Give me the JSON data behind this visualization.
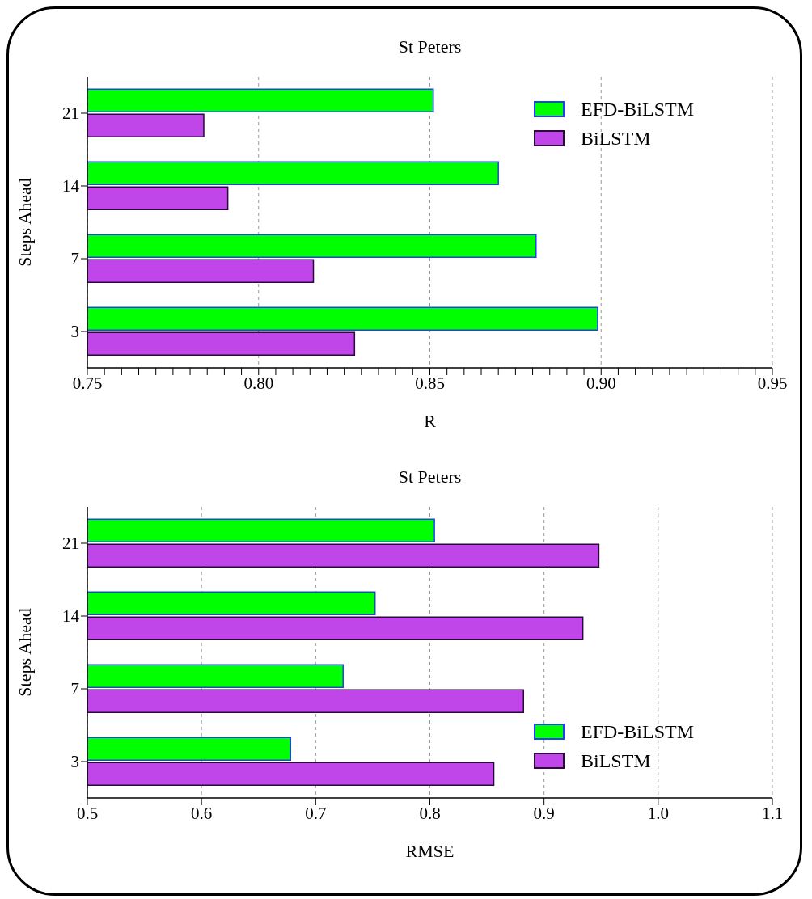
{
  "chart_data": [
    {
      "type": "bar",
      "orientation": "horizontal",
      "title": "St Peters",
      "xlabel": "R",
      "ylabel": "Steps Ahead",
      "categories": [
        "21",
        "14",
        "7",
        "3"
      ],
      "series": [
        {
          "name": "EFD-BiLSTM",
          "color": "#00ff00",
          "values": [
            0.851,
            0.87,
            0.881,
            0.899
          ]
        },
        {
          "name": "BiLSTM",
          "color": "#c046ea",
          "values": [
            0.784,
            0.791,
            0.816,
            0.828
          ]
        }
      ],
      "xlim": [
        0.75,
        0.95
      ],
      "xticks": [
        {
          "value": 0.75,
          "label": "0.75"
        },
        {
          "value": 0.755,
          "label": null
        },
        {
          "value": 0.76,
          "label": null
        },
        {
          "value": 0.765,
          "label": null
        },
        {
          "value": 0.77,
          "label": null
        },
        {
          "value": 0.775,
          "label": null
        },
        {
          "value": 0.78,
          "label": null
        },
        {
          "value": 0.785,
          "label": null
        },
        {
          "value": 0.79,
          "label": null
        },
        {
          "value": 0.795,
          "label": null
        },
        {
          "value": 0.8,
          "label": "0.80"
        },
        {
          "value": 0.805,
          "label": null
        },
        {
          "value": 0.81,
          "label": null
        },
        {
          "value": 0.815,
          "label": null
        },
        {
          "value": 0.82,
          "label": null
        },
        {
          "value": 0.825,
          "label": null
        },
        {
          "value": 0.83,
          "label": null
        },
        {
          "value": 0.835,
          "label": null
        },
        {
          "value": 0.84,
          "label": null
        },
        {
          "value": 0.845,
          "label": null
        },
        {
          "value": 0.85,
          "label": "0.85"
        },
        {
          "value": 0.855,
          "label": null
        },
        {
          "value": 0.86,
          "label": null
        },
        {
          "value": 0.865,
          "label": null
        },
        {
          "value": 0.87,
          "label": null
        },
        {
          "value": 0.875,
          "label": null
        },
        {
          "value": 0.88,
          "label": null
        },
        {
          "value": 0.885,
          "label": null
        },
        {
          "value": 0.89,
          "label": null
        },
        {
          "value": 0.895,
          "label": null
        },
        {
          "value": 0.9,
          "label": "0.90"
        },
        {
          "value": 0.905,
          "label": null
        },
        {
          "value": 0.91,
          "label": null
        },
        {
          "value": 0.915,
          "label": null
        },
        {
          "value": 0.92,
          "label": null
        },
        {
          "value": 0.925,
          "label": null
        },
        {
          "value": 0.93,
          "label": null
        },
        {
          "value": 0.935,
          "label": null
        },
        {
          "value": 0.94,
          "label": null
        },
        {
          "value": 0.945,
          "label": null
        },
        {
          "value": 0.95,
          "label": "0.95"
        }
      ],
      "grid": "x",
      "legend": "top right"
    },
    {
      "type": "bar",
      "orientation": "horizontal",
      "title": "St Peters",
      "xlabel": "RMSE",
      "ylabel": "Steps Ahead",
      "categories": [
        "21",
        "14",
        "7",
        "3"
      ],
      "series": [
        {
          "name": "EFD-BiLSTM",
          "color": "#00ff00",
          "values": [
            0.804,
            0.752,
            0.724,
            0.678
          ]
        },
        {
          "name": "BiLSTM",
          "color": "#c046ea",
          "values": [
            0.948,
            0.934,
            0.882,
            0.856
          ]
        }
      ],
      "xlim": [
        0.5,
        1.1
      ],
      "xticks": [
        0.5,
        0.6,
        0.7,
        0.8,
        0.9,
        {
          "value": 1.0,
          "label": "1.0"
        },
        1.1
      ],
      "grid": "x",
      "legend": "bottom right"
    }
  ]
}
